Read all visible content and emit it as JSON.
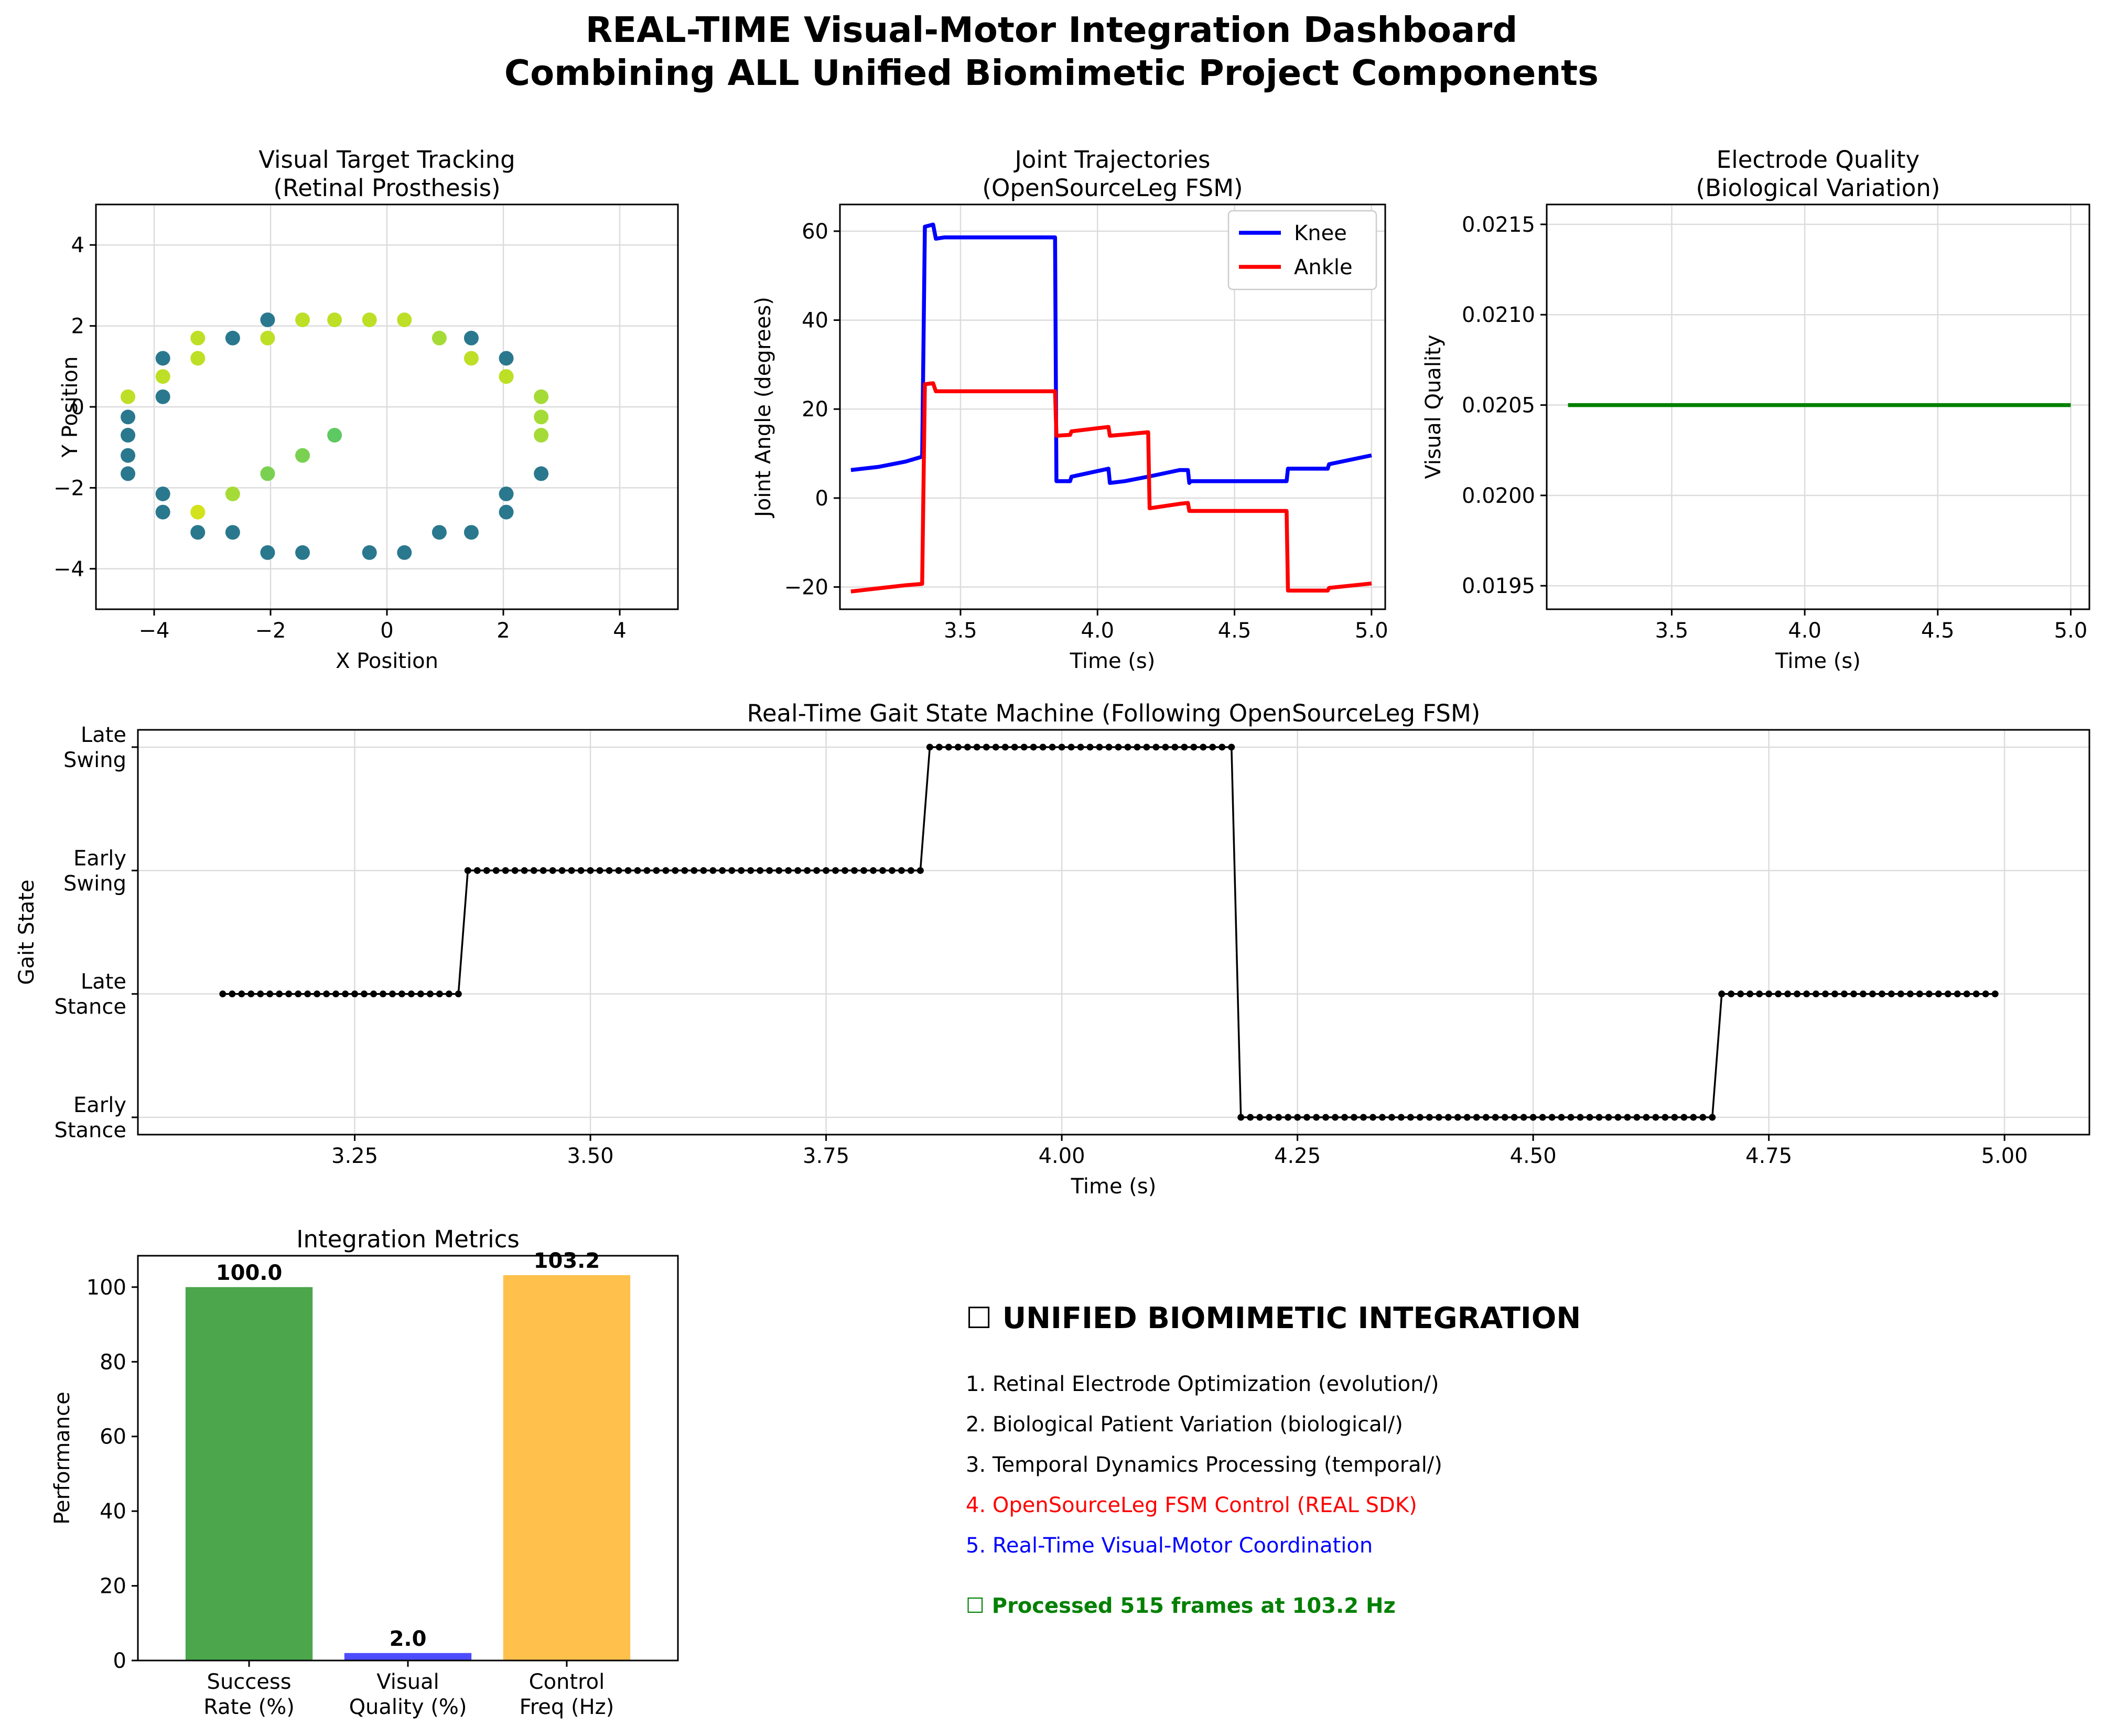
{
  "figure": {
    "title_line1": "REAL-TIME Visual-Motor Integration Dashboard",
    "title_line2": "Combining ALL Unified Biomimetic Project Components"
  },
  "summary_panel": {
    "heading": "☐ UNIFIED BIOMIMETIC INTEGRATION",
    "items": [
      {
        "text": "1. Retinal Electrode Optimization (evolution/)",
        "color": "#000000"
      },
      {
        "text": "2. Biological Patient Variation (biological/)",
        "color": "#000000"
      },
      {
        "text": "3. Temporal Dynamics Processing (temporal/)",
        "color": "#000000"
      },
      {
        "text": "4. OpenSourceLeg FSM Control (REAL SDK)",
        "color": "#ff0000"
      },
      {
        "text": "5. Real-Time Visual-Motor Coordination",
        "color": "#0000ff"
      }
    ],
    "status": "☐ Processed 515 frames at 103.2 Hz",
    "status_color": "#008000"
  },
  "chart_data": [
    {
      "id": "visual-tracking",
      "type": "scatter",
      "title": "Visual Target Tracking\n(Retinal Prosthesis)",
      "xlabel": "X Position",
      "ylabel": "Y Position",
      "xlim": [
        -5,
        5
      ],
      "ylim": [
        -5,
        5
      ],
      "xticks": [
        -4,
        -2,
        0,
        2,
        4
      ],
      "yticks": [
        -4,
        -2,
        0,
        2,
        4
      ],
      "grid": true,
      "points": [
        {
          "x": -0.9,
          "y": 2.15,
          "color": "#bddf26"
        },
        {
          "x": -0.3,
          "y": 2.15,
          "color": "#bddf26"
        },
        {
          "x": 0.3,
          "y": 2.15,
          "color": "#bddf26"
        },
        {
          "x": -1.45,
          "y": 2.15,
          "color": "#bddf26"
        },
        {
          "x": -2.05,
          "y": 2.15,
          "color": "#2a788e"
        },
        {
          "x": -2.05,
          "y": 1.7,
          "color": "#bddf26"
        },
        {
          "x": -2.65,
          "y": 1.7,
          "color": "#2a788e"
        },
        {
          "x": -3.25,
          "y": 1.7,
          "color": "#bddf26"
        },
        {
          "x": -3.25,
          "y": 1.2,
          "color": "#bddf26"
        },
        {
          "x": -3.85,
          "y": 1.2,
          "color": "#2a788e"
        },
        {
          "x": -3.85,
          "y": 0.75,
          "color": "#bddf26"
        },
        {
          "x": -3.85,
          "y": 0.25,
          "color": "#2a788e"
        },
        {
          "x": -4.45,
          "y": 0.25,
          "color": "#bddf26"
        },
        {
          "x": -4.45,
          "y": -0.25,
          "color": "#2a788e"
        },
        {
          "x": -4.45,
          "y": -0.7,
          "color": "#2a788e"
        },
        {
          "x": -4.45,
          "y": -1.2,
          "color": "#2a788e"
        },
        {
          "x": -4.45,
          "y": -1.65,
          "color": "#2a788e"
        },
        {
          "x": -3.85,
          "y": -2.15,
          "color": "#2a788e"
        },
        {
          "x": -3.85,
          "y": -2.6,
          "color": "#2a788e"
        },
        {
          "x": -3.25,
          "y": -2.6,
          "color": "#d2e21b"
        },
        {
          "x": -3.25,
          "y": -3.1,
          "color": "#2a788e"
        },
        {
          "x": -2.65,
          "y": -3.1,
          "color": "#2a788e"
        },
        {
          "x": -2.05,
          "y": -3.6,
          "color": "#2a788e"
        },
        {
          "x": -1.45,
          "y": -3.6,
          "color": "#2a788e"
        },
        {
          "x": -0.3,
          "y": -3.6,
          "color": "#2a788e"
        },
        {
          "x": 0.3,
          "y": -3.6,
          "color": "#2a788e"
        },
        {
          "x": 0.9,
          "y": -3.1,
          "color": "#2a788e"
        },
        {
          "x": 1.45,
          "y": -3.1,
          "color": "#2a788e"
        },
        {
          "x": 2.05,
          "y": -2.6,
          "color": "#2a788e"
        },
        {
          "x": 2.05,
          "y": -2.15,
          "color": "#2a788e"
        },
        {
          "x": 2.65,
          "y": -1.65,
          "color": "#2a788e"
        },
        {
          "x": 2.65,
          "y": -0.7,
          "color": "#a5db36"
        },
        {
          "x": 2.65,
          "y": -0.25,
          "color": "#a5db36"
        },
        {
          "x": 2.65,
          "y": 0.25,
          "color": "#a5db36"
        },
        {
          "x": 2.05,
          "y": 0.75,
          "color": "#a5db36"
        },
        {
          "x": 2.05,
          "y": 0.75,
          "color": "#bddf26"
        },
        {
          "x": 2.05,
          "y": 1.2,
          "color": "#2a788e"
        },
        {
          "x": 1.45,
          "y": 1.2,
          "color": "#bddf26"
        },
        {
          "x": 1.45,
          "y": 1.7,
          "color": "#2a788e"
        },
        {
          "x": 0.9,
          "y": 1.7,
          "color": "#a5db36"
        },
        {
          "x": -2.65,
          "y": -2.15,
          "color": "#a5db36"
        },
        {
          "x": -2.05,
          "y": -1.65,
          "color": "#7ad151"
        },
        {
          "x": -1.45,
          "y": -1.2,
          "color": "#7ad151"
        },
        {
          "x": -0.9,
          "y": -0.7,
          "color": "#5ec962"
        }
      ]
    },
    {
      "id": "joint-trajectories",
      "type": "line",
      "title": "Joint Trajectories\n(OpenSourceLeg FSM)",
      "xlabel": "Time (s)",
      "ylabel": "Joint Angle (degrees)",
      "xlim": [
        3.06,
        5.05
      ],
      "ylim": [
        -25,
        66
      ],
      "xticks": [
        3.5,
        4.0,
        4.5,
        5.0
      ],
      "xtick_labels": [
        "3.5",
        "4.0",
        "4.5",
        "5.0"
      ],
      "yticks": [
        -20,
        0,
        20,
        40,
        60
      ],
      "grid": true,
      "legend_position": "top-right",
      "series": [
        {
          "name": "Knee",
          "color": "#0000ff",
          "points": [
            [
              3.1,
              6.3
            ],
            [
              3.2,
              7.0
            ],
            [
              3.3,
              8.2
            ],
            [
              3.36,
              9.3
            ],
            [
              3.37,
              61.0
            ],
            [
              3.4,
              61.5
            ],
            [
              3.41,
              58.3
            ],
            [
              3.44,
              58.6
            ],
            [
              3.845,
              58.6
            ],
            [
              3.85,
              3.8
            ],
            [
              3.9,
              3.8
            ],
            [
              3.905,
              4.8
            ],
            [
              4.04,
              6.6
            ],
            [
              4.045,
              3.4
            ],
            [
              4.1,
              3.8
            ],
            [
              4.2,
              5.0
            ],
            [
              4.3,
              6.3
            ],
            [
              4.33,
              6.3
            ],
            [
              4.335,
              3.4
            ],
            [
              4.34,
              3.8
            ],
            [
              4.69,
              3.8
            ],
            [
              4.695,
              6.6
            ],
            [
              4.84,
              6.6
            ],
            [
              4.845,
              7.6
            ],
            [
              5.0,
              9.6
            ]
          ]
        },
        {
          "name": "Ankle",
          "color": "#ff0000",
          "points": [
            [
              3.1,
              -21.0
            ],
            [
              3.2,
              -20.3
            ],
            [
              3.3,
              -19.6
            ],
            [
              3.36,
              -19.3
            ],
            [
              3.37,
              25.6
            ],
            [
              3.4,
              25.8
            ],
            [
              3.41,
              24.0
            ],
            [
              3.845,
              24.0
            ],
            [
              3.85,
              14.0
            ],
            [
              3.9,
              14.2
            ],
            [
              3.905,
              15.0
            ],
            [
              4.04,
              16.0
            ],
            [
              4.045,
              14.0
            ],
            [
              4.1,
              14.3
            ],
            [
              4.185,
              14.8
            ],
            [
              4.19,
              -2.3
            ],
            [
              4.3,
              -1.3
            ],
            [
              4.33,
              -1.1
            ],
            [
              4.335,
              -2.9
            ],
            [
              4.69,
              -2.9
            ],
            [
              4.695,
              -20.8
            ],
            [
              4.84,
              -20.8
            ],
            [
              4.845,
              -20.2
            ],
            [
              5.0,
              -19.2
            ]
          ]
        }
      ]
    },
    {
      "id": "electrode-quality",
      "type": "line",
      "title": "Electrode Quality\n(Biological Variation)",
      "xlabel": "Time (s)",
      "ylabel": "Visual Quality",
      "xlim": [
        3.03,
        5.07
      ],
      "ylim": [
        0.01937,
        0.02161
      ],
      "xticks": [
        3.5,
        4.0,
        4.5,
        5.0
      ],
      "xtick_labels": [
        "3.5",
        "4.0",
        "4.5",
        "5.0"
      ],
      "yticks": [
        0.0195,
        0.02,
        0.0205,
        0.021,
        0.0215
      ],
      "ytick_labels": [
        "0.0195",
        "0.0200",
        "0.0205",
        "0.0210",
        "0.0215"
      ],
      "grid": true,
      "series": [
        {
          "name": "Visual Quality",
          "color": "#008000",
          "points": [
            [
              3.11,
              0.0205
            ],
            [
              5.0,
              0.0205
            ]
          ]
        }
      ]
    },
    {
      "id": "gait-state",
      "type": "line",
      "title": "Real-Time Gait State Machine (Following OpenSourceLeg FSM)",
      "xlabel": "Time (s)",
      "ylabel": "Gait State",
      "xlim": [
        3.02,
        5.09
      ],
      "ylim": [
        -0.14,
        3.14
      ],
      "xticks": [
        3.25,
        3.5,
        3.75,
        4.0,
        4.25,
        4.5,
        4.75,
        5.0
      ],
      "xtick_labels": [
        "3.25",
        "3.50",
        "3.75",
        "4.00",
        "4.25",
        "4.50",
        "4.75",
        "5.00"
      ],
      "yticks": [
        0,
        1,
        2,
        3
      ],
      "ytick_labels": [
        "Early\nStance",
        "Late\nStance",
        "Early\nSwing",
        "Late\nSwing"
      ],
      "grid": true,
      "sample_step": 0.01,
      "segments": [
        {
          "t0": 3.11,
          "t1": 3.36,
          "state": 1
        },
        {
          "t0": 3.37,
          "t1": 3.85,
          "state": 2
        },
        {
          "t0": 3.86,
          "t1": 4.18,
          "state": 3
        },
        {
          "t0": 4.19,
          "t1": 4.69,
          "state": 0
        },
        {
          "t0": 4.7,
          "t1": 4.99,
          "state": 1
        }
      ]
    },
    {
      "id": "integration-metrics",
      "type": "bar",
      "title": "Integration Metrics",
      "xlabel": "",
      "ylabel": "Performance",
      "ylim": [
        0,
        108.4
      ],
      "yticks": [
        0,
        20,
        40,
        60,
        80,
        100
      ],
      "grid": false,
      "categories": [
        "Success\nRate (%)",
        "Visual\nQuality (%)",
        "Control\nFreq (Hz)"
      ],
      "values": [
        100.0,
        2.0,
        103.2
      ],
      "value_labels": [
        "100.0",
        "2.0",
        "103.2"
      ],
      "colors": [
        "#4ca64c",
        "#4c4cff",
        "#ffc04c"
      ]
    }
  ]
}
